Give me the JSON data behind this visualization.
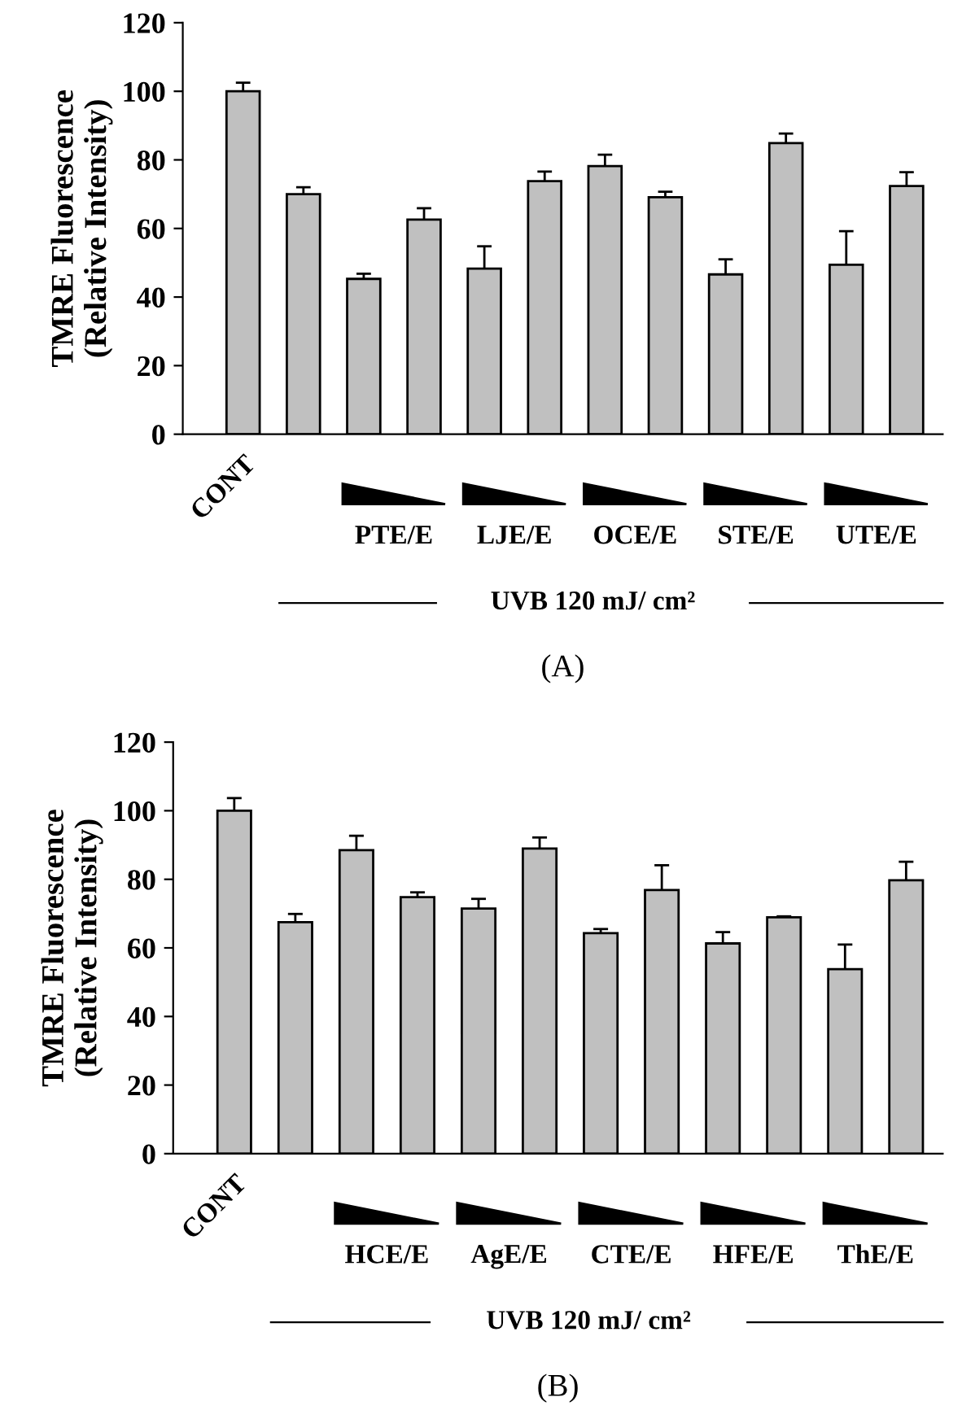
{
  "chart_data": [
    {
      "type": "bar",
      "ylabel": "TMRE Fluorescence\n(Relative Intensity)",
      "categories": [
        "CONT",
        null,
        null,
        null,
        null,
        null,
        null,
        null,
        null,
        null,
        null,
        null
      ],
      "color": "#c0c0c0",
      "values": [
        100,
        70,
        45.3,
        62.6,
        48.3,
        73.8,
        78.2,
        69.1,
        46.6,
        84.9,
        49.4,
        72.4
      ],
      "errors": [
        [
          100,
          102.5
        ],
        [
          70,
          72
        ],
        [
          45.3,
          46.8
        ],
        [
          62.6,
          65.9
        ],
        [
          48.3,
          54.8
        ],
        [
          73.8,
          76.6
        ],
        [
          78.2,
          81.5
        ],
        [
          69.1,
          70.7
        ],
        [
          46.6,
          51
        ],
        [
          84.9,
          87.7
        ],
        [
          49.4,
          59.2
        ],
        [
          72.4,
          76.4
        ]
      ],
      "ylim": [
        0,
        120
      ],
      "yticks": [
        0,
        20,
        40,
        60,
        80,
        100,
        120
      ],
      "grid": false,
      "annotations": [
        "PTE/E",
        "LJE/E",
        "OCE/E",
        "STE/E",
        "UTE/E",
        "UVB 120 mJ/ cm²",
        "(A)"
      ]
    },
    {
      "type": "bar",
      "ylabel": "TMRE Fluorescence\n(Relative Intensity)",
      "categories": [
        "CONT",
        null,
        null,
        null,
        null,
        null,
        null,
        null,
        null,
        null,
        null,
        null
      ],
      "color": "#c0c0c0",
      "values": [
        100,
        67.5,
        88.5,
        74.8,
        71.5,
        89,
        64.3,
        76.9,
        61.3,
        68.9,
        53.8,
        79.7
      ],
      "errors": [
        [
          100,
          103.7
        ],
        [
          67.5,
          69.9
        ],
        [
          88.5,
          92.7
        ],
        [
          74.8,
          76.2
        ],
        [
          71.5,
          74.3
        ],
        [
          89,
          92.2
        ],
        [
          64.3,
          65.5
        ],
        [
          76.9,
          84.1
        ],
        [
          61.3,
          64.6
        ],
        [
          68.9,
          69.2
        ],
        [
          53.8,
          61
        ],
        [
          79.7,
          85.1
        ]
      ],
      "ylim": [
        0,
        120
      ],
      "yticks": [
        0,
        20,
        40,
        60,
        80,
        100,
        120
      ],
      "grid": false,
      "annotations": [
        "HCE/E",
        "AgE/E",
        "CTE/E",
        "HFE/E",
        "ThE/E",
        "UVB 120 mJ/ cm²",
        "(B)"
      ]
    }
  ]
}
